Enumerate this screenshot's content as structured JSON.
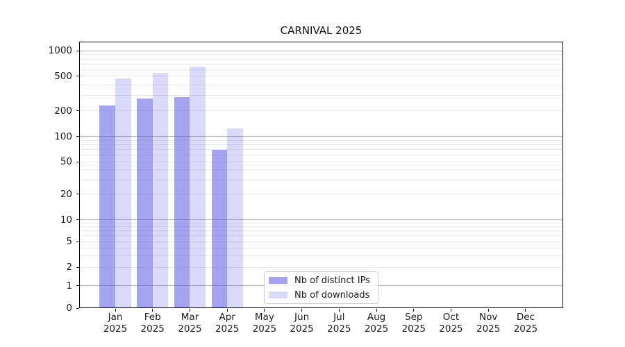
{
  "chart_data": {
    "type": "bar",
    "title": "CARNIVAL 2025",
    "categories": [
      "Jan 2025",
      "Feb 2025",
      "Mar 2025",
      "Apr 2025",
      "May 2025",
      "Jun 2025",
      "Jul 2025",
      "Aug 2025",
      "Sep 2025",
      "Oct 2025",
      "Nov 2025",
      "Dec 2025"
    ],
    "series": [
      {
        "name": "Nb of distinct IPs",
        "color": "#6666E699",
        "values": [
          230,
          280,
          290,
          70,
          0,
          0,
          0,
          0,
          0,
          0,
          0,
          0
        ]
      },
      {
        "name": "Nb of downloads",
        "color": "#6666E640",
        "values": [
          470,
          550,
          650,
          125,
          0,
          0,
          0,
          0,
          0,
          0,
          0,
          0
        ]
      }
    ],
    "y_axis": {
      "scale": "symlog",
      "tick_values": [
        0,
        1,
        2,
        5,
        10,
        20,
        50,
        100,
        200,
        500,
        1000
      ],
      "tick_labels": [
        "0",
        "1",
        "2",
        "5",
        "10",
        "20",
        "50",
        "100",
        "200",
        "500",
        "1000"
      ],
      "ylim": [
        0,
        1200
      ]
    },
    "grid": {
      "major_color": "#b0b0b0",
      "minor_color": "#e9e9e9"
    },
    "legend_position": "lower-center-inside",
    "xlabel": "",
    "ylabel": ""
  }
}
